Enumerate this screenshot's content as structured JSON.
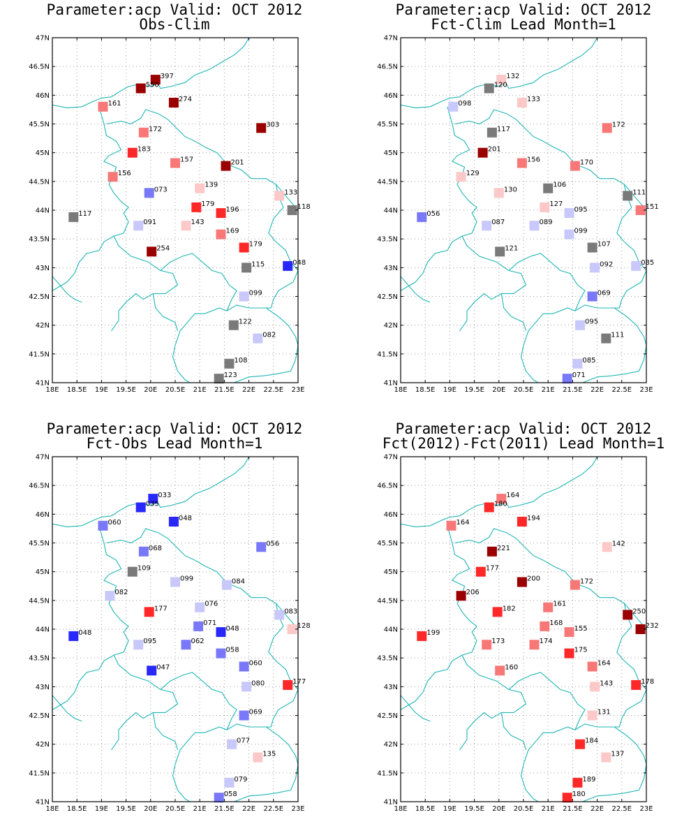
{
  "axis": {
    "lon_ticks": [
      18,
      18.5,
      19,
      19.5,
      20,
      20.5,
      21,
      21.5,
      22,
      22.5,
      23
    ],
    "lon_labels": [
      "18E",
      "18.5E",
      "19E",
      "19.5E",
      "20E",
      "20.5E",
      "21E",
      "21.5E",
      "22E",
      "22.5E",
      "23E"
    ],
    "lat_ticks": [
      41,
      41.5,
      42,
      42.5,
      43,
      43.5,
      44,
      44.5,
      45,
      45.5,
      46,
      46.5,
      47
    ],
    "lat_labels": [
      "41N",
      "41.5N",
      "42N",
      "42.5N",
      "43N",
      "43.5N",
      "44N",
      "44.5N",
      "45N",
      "45.5N",
      "46N",
      "46.5N",
      "47N"
    ],
    "lon_range": [
      18,
      23
    ],
    "lat_range": [
      41,
      47
    ],
    "grid": true
  },
  "colors": {
    "dark_red": "#9b0000",
    "red": "#ff2828",
    "mid_red": "#f87878",
    "light_red": "#fcc8c8",
    "gray": "#7a7a7a",
    "light_blue": "#c8c8fa",
    "mid_blue": "#7878f8",
    "blue": "#2828fa",
    "border": "#1fb5b5"
  },
  "chart_data": [
    {
      "type": "scatter",
      "title": "Parameter:acp Valid: OCT 2012",
      "subtitle": "Obs-Clim",
      "points": [
        {
          "lon": 20.1,
          "lat": 46.27,
          "label": "397",
          "color": "dark_red"
        },
        {
          "lon": 19.8,
          "lat": 46.12,
          "label": "550",
          "color": "dark_red"
        },
        {
          "lon": 19.03,
          "lat": 45.8,
          "label": "161",
          "color": "mid_red"
        },
        {
          "lon": 20.47,
          "lat": 45.87,
          "label": "274",
          "color": "dark_red"
        },
        {
          "lon": 22.25,
          "lat": 45.43,
          "label": "303",
          "color": "dark_red"
        },
        {
          "lon": 19.86,
          "lat": 45.35,
          "label": "172",
          "color": "mid_red"
        },
        {
          "lon": 19.63,
          "lat": 45.0,
          "label": "183",
          "color": "red"
        },
        {
          "lon": 20.5,
          "lat": 44.82,
          "label": "157",
          "color": "mid_red"
        },
        {
          "lon": 21.53,
          "lat": 44.77,
          "label": "201",
          "color": "dark_red"
        },
        {
          "lon": 19.23,
          "lat": 44.58,
          "label": "156",
          "color": "mid_red"
        },
        {
          "lon": 19.97,
          "lat": 44.3,
          "label": "073",
          "color": "mid_blue"
        },
        {
          "lon": 21.0,
          "lat": 44.38,
          "label": "139",
          "color": "light_red"
        },
        {
          "lon": 22.62,
          "lat": 44.25,
          "label": "133",
          "color": "light_red"
        },
        {
          "lon": 20.93,
          "lat": 44.05,
          "label": "179",
          "color": "red"
        },
        {
          "lon": 21.43,
          "lat": 43.95,
          "label": "196",
          "color": "red"
        },
        {
          "lon": 22.88,
          "lat": 44.0,
          "label": "118",
          "color": "gray"
        },
        {
          "lon": 18.43,
          "lat": 43.88,
          "label": "117",
          "color": "gray"
        },
        {
          "lon": 19.75,
          "lat": 43.73,
          "label": "091",
          "color": "light_blue"
        },
        {
          "lon": 20.72,
          "lat": 43.73,
          "label": "143",
          "color": "light_red"
        },
        {
          "lon": 21.43,
          "lat": 43.58,
          "label": "169",
          "color": "mid_red"
        },
        {
          "lon": 21.9,
          "lat": 43.35,
          "label": "179",
          "color": "red"
        },
        {
          "lon": 20.02,
          "lat": 43.28,
          "label": "254",
          "color": "dark_red"
        },
        {
          "lon": 21.95,
          "lat": 43.0,
          "label": "115",
          "color": "gray"
        },
        {
          "lon": 22.79,
          "lat": 43.03,
          "label": "048",
          "color": "blue"
        },
        {
          "lon": 21.9,
          "lat": 42.5,
          "label": "099",
          "color": "light_blue"
        },
        {
          "lon": 21.69,
          "lat": 42.0,
          "label": "122",
          "color": "gray"
        },
        {
          "lon": 22.18,
          "lat": 41.77,
          "label": "082",
          "color": "light_blue"
        },
        {
          "lon": 21.6,
          "lat": 41.33,
          "label": "108",
          "color": "gray"
        },
        {
          "lon": 21.39,
          "lat": 41.07,
          "label": "123",
          "color": "gray"
        }
      ]
    },
    {
      "type": "scatter",
      "title": "Parameter:acp Valid: OCT 2012",
      "subtitle": "Fct-Clim Lead Month=1",
      "points": [
        {
          "lon": 20.05,
          "lat": 46.27,
          "label": "132",
          "color": "light_red"
        },
        {
          "lon": 19.8,
          "lat": 46.12,
          "label": "120",
          "color": "gray"
        },
        {
          "lon": 19.07,
          "lat": 45.8,
          "label": "098",
          "color": "light_blue"
        },
        {
          "lon": 20.47,
          "lat": 45.87,
          "label": "133",
          "color": "light_red"
        },
        {
          "lon": 22.2,
          "lat": 45.43,
          "label": "172",
          "color": "mid_red"
        },
        {
          "lon": 19.86,
          "lat": 45.35,
          "label": "117",
          "color": "gray"
        },
        {
          "lon": 19.67,
          "lat": 45.0,
          "label": "201",
          "color": "dark_red"
        },
        {
          "lon": 20.47,
          "lat": 44.82,
          "label": "156",
          "color": "mid_red"
        },
        {
          "lon": 21.55,
          "lat": 44.77,
          "label": "170",
          "color": "mid_red"
        },
        {
          "lon": 19.23,
          "lat": 44.58,
          "label": "129",
          "color": "light_red"
        },
        {
          "lon": 20.0,
          "lat": 44.3,
          "label": "130",
          "color": "light_red"
        },
        {
          "lon": 21.0,
          "lat": 44.38,
          "label": "106",
          "color": "gray"
        },
        {
          "lon": 22.62,
          "lat": 44.25,
          "label": "111",
          "color": "gray"
        },
        {
          "lon": 20.93,
          "lat": 44.05,
          "label": "127",
          "color": "light_red"
        },
        {
          "lon": 21.43,
          "lat": 43.95,
          "label": "095",
          "color": "light_blue"
        },
        {
          "lon": 22.88,
          "lat": 44.0,
          "label": "151",
          "color": "mid_red"
        },
        {
          "lon": 18.43,
          "lat": 43.88,
          "label": "056",
          "color": "mid_blue"
        },
        {
          "lon": 19.75,
          "lat": 43.73,
          "label": "087",
          "color": "light_blue"
        },
        {
          "lon": 20.72,
          "lat": 43.73,
          "label": "089",
          "color": "light_blue"
        },
        {
          "lon": 21.43,
          "lat": 43.58,
          "label": "099",
          "color": "light_blue"
        },
        {
          "lon": 21.9,
          "lat": 43.35,
          "label": "107",
          "color": "gray"
        },
        {
          "lon": 20.02,
          "lat": 43.28,
          "label": "121",
          "color": "gray"
        },
        {
          "lon": 21.95,
          "lat": 43.0,
          "label": "092",
          "color": "light_blue"
        },
        {
          "lon": 22.79,
          "lat": 43.03,
          "label": "085",
          "color": "light_blue"
        },
        {
          "lon": 21.9,
          "lat": 42.5,
          "label": "069",
          "color": "mid_blue"
        },
        {
          "lon": 21.65,
          "lat": 42.0,
          "label": "095",
          "color": "light_blue"
        },
        {
          "lon": 22.18,
          "lat": 41.77,
          "label": "111",
          "color": "gray"
        },
        {
          "lon": 21.6,
          "lat": 41.33,
          "label": "085",
          "color": "light_blue"
        },
        {
          "lon": 21.39,
          "lat": 41.07,
          "label": "071",
          "color": "mid_blue"
        }
      ]
    },
    {
      "type": "scatter",
      "title": "Parameter:acp Valid: OCT 2012",
      "subtitle": "Fct-Obs Lead Month=1",
      "points": [
        {
          "lon": 20.05,
          "lat": 46.27,
          "label": "033",
          "color": "blue"
        },
        {
          "lon": 19.8,
          "lat": 46.12,
          "label": "035",
          "color": "blue"
        },
        {
          "lon": 19.03,
          "lat": 45.8,
          "label": "060",
          "color": "mid_blue"
        },
        {
          "lon": 20.47,
          "lat": 45.87,
          "label": "048",
          "color": "blue"
        },
        {
          "lon": 22.25,
          "lat": 45.43,
          "label": "056",
          "color": "mid_blue"
        },
        {
          "lon": 19.86,
          "lat": 45.35,
          "label": "068",
          "color": "mid_blue"
        },
        {
          "lon": 19.63,
          "lat": 45.0,
          "label": "109",
          "color": "gray"
        },
        {
          "lon": 20.5,
          "lat": 44.82,
          "label": "099",
          "color": "light_blue"
        },
        {
          "lon": 21.55,
          "lat": 44.77,
          "label": "084",
          "color": "light_blue"
        },
        {
          "lon": 19.17,
          "lat": 44.58,
          "label": "082",
          "color": "light_blue"
        },
        {
          "lon": 19.97,
          "lat": 44.3,
          "label": "177",
          "color": "red"
        },
        {
          "lon": 21.0,
          "lat": 44.38,
          "label": "076",
          "color": "light_blue"
        },
        {
          "lon": 22.62,
          "lat": 44.25,
          "label": "083",
          "color": "light_blue"
        },
        {
          "lon": 20.97,
          "lat": 44.05,
          "label": "071",
          "color": "mid_blue"
        },
        {
          "lon": 21.43,
          "lat": 43.95,
          "label": "048",
          "color": "blue"
        },
        {
          "lon": 22.88,
          "lat": 44.0,
          "label": "128",
          "color": "light_red"
        },
        {
          "lon": 18.43,
          "lat": 43.88,
          "label": "048",
          "color": "blue"
        },
        {
          "lon": 19.75,
          "lat": 43.73,
          "label": "095",
          "color": "light_blue"
        },
        {
          "lon": 20.72,
          "lat": 43.73,
          "label": "062",
          "color": "mid_blue"
        },
        {
          "lon": 21.43,
          "lat": 43.58,
          "label": "058",
          "color": "mid_blue"
        },
        {
          "lon": 21.9,
          "lat": 43.35,
          "label": "060",
          "color": "mid_blue"
        },
        {
          "lon": 20.02,
          "lat": 43.28,
          "label": "047",
          "color": "blue"
        },
        {
          "lon": 21.95,
          "lat": 43.0,
          "label": "080",
          "color": "light_blue"
        },
        {
          "lon": 22.79,
          "lat": 43.03,
          "label": "177",
          "color": "red"
        },
        {
          "lon": 21.9,
          "lat": 42.5,
          "label": "069",
          "color": "mid_blue"
        },
        {
          "lon": 21.65,
          "lat": 42.0,
          "label": "077",
          "color": "light_blue"
        },
        {
          "lon": 22.18,
          "lat": 41.77,
          "label": "135",
          "color": "light_red"
        },
        {
          "lon": 21.6,
          "lat": 41.33,
          "label": "079",
          "color": "light_blue"
        },
        {
          "lon": 21.39,
          "lat": 41.07,
          "label": "058",
          "color": "mid_blue"
        }
      ]
    },
    {
      "type": "scatter",
      "title": "Parameter:acp Valid: OCT 2012",
      "subtitle": "Fct(2012)-Fct(2011) Lead Month=1",
      "points": [
        {
          "lon": 20.05,
          "lat": 46.27,
          "label": "164",
          "color": "mid_red"
        },
        {
          "lon": 19.8,
          "lat": 46.12,
          "label": "180",
          "color": "red"
        },
        {
          "lon": 19.03,
          "lat": 45.8,
          "label": "164",
          "color": "mid_red"
        },
        {
          "lon": 20.47,
          "lat": 45.87,
          "label": "194",
          "color": "red"
        },
        {
          "lon": 22.2,
          "lat": 45.43,
          "label": "142",
          "color": "light_red"
        },
        {
          "lon": 19.86,
          "lat": 45.35,
          "label": "221",
          "color": "dark_red"
        },
        {
          "lon": 19.63,
          "lat": 45.0,
          "label": "177",
          "color": "red"
        },
        {
          "lon": 20.47,
          "lat": 44.82,
          "label": "200",
          "color": "dark_red"
        },
        {
          "lon": 21.55,
          "lat": 44.77,
          "label": "172",
          "color": "mid_red"
        },
        {
          "lon": 19.23,
          "lat": 44.58,
          "label": "206",
          "color": "dark_red"
        },
        {
          "lon": 19.97,
          "lat": 44.3,
          "label": "182",
          "color": "red"
        },
        {
          "lon": 21.0,
          "lat": 44.38,
          "label": "161",
          "color": "mid_red"
        },
        {
          "lon": 22.62,
          "lat": 44.25,
          "label": "250",
          "color": "dark_red"
        },
        {
          "lon": 20.93,
          "lat": 44.05,
          "label": "168",
          "color": "mid_red"
        },
        {
          "lon": 21.43,
          "lat": 43.95,
          "label": "155",
          "color": "mid_red"
        },
        {
          "lon": 22.88,
          "lat": 44.0,
          "label": "232",
          "color": "dark_red"
        },
        {
          "lon": 18.43,
          "lat": 43.88,
          "label": "199",
          "color": "red"
        },
        {
          "lon": 19.75,
          "lat": 43.73,
          "label": "173",
          "color": "mid_red"
        },
        {
          "lon": 20.72,
          "lat": 43.73,
          "label": "174",
          "color": "mid_red"
        },
        {
          "lon": 21.43,
          "lat": 43.58,
          "label": "175",
          "color": "red"
        },
        {
          "lon": 21.9,
          "lat": 43.35,
          "label": "164",
          "color": "mid_red"
        },
        {
          "lon": 20.02,
          "lat": 43.28,
          "label": "160",
          "color": "mid_red"
        },
        {
          "lon": 21.95,
          "lat": 43.0,
          "label": "143",
          "color": "light_red"
        },
        {
          "lon": 22.79,
          "lat": 43.03,
          "label": "178",
          "color": "red"
        },
        {
          "lon": 21.9,
          "lat": 42.5,
          "label": "131",
          "color": "light_red"
        },
        {
          "lon": 21.65,
          "lat": 42.0,
          "label": "184",
          "color": "red"
        },
        {
          "lon": 22.18,
          "lat": 41.77,
          "label": "137",
          "color": "light_red"
        },
        {
          "lon": 21.6,
          "lat": 41.33,
          "label": "189",
          "color": "red"
        },
        {
          "lon": 21.39,
          "lat": 41.07,
          "label": "180",
          "color": "red"
        }
      ]
    }
  ]
}
